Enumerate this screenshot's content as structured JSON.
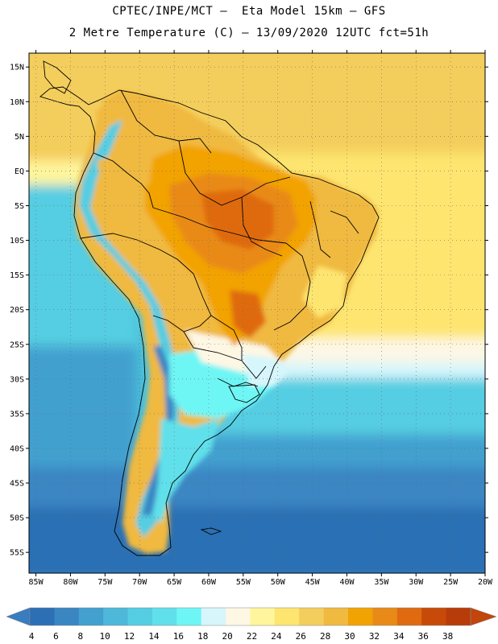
{
  "header": {
    "line1": "CPTEC/INPE/MCT –  Eta Model 15km – GFS",
    "line2": "2 Metre Temperature (C) – 13/09/2020 12UTC fct=51h"
  },
  "map": {
    "lon_range": [
      -86,
      -20
    ],
    "lat_range": [
      -58,
      17
    ],
    "lat_ticks": [
      "15N",
      "10N",
      "5N",
      "EQ",
      "5S",
      "10S",
      "15S",
      "20S",
      "25S",
      "30S",
      "35S",
      "40S",
      "45S",
      "50S",
      "55S"
    ],
    "lat_values": [
      15,
      10,
      5,
      0,
      -5,
      -10,
      -15,
      -20,
      -25,
      -30,
      -35,
      -40,
      -45,
      -50,
      -55
    ],
    "lon_ticks": [
      "85W",
      "80W",
      "75W",
      "70W",
      "65W",
      "60W",
      "55W",
      "50W",
      "45W",
      "40W",
      "35W",
      "30W",
      "25W",
      "20W"
    ],
    "lon_values": [
      -85,
      -80,
      -75,
      -70,
      -65,
      -60,
      -55,
      -50,
      -45,
      -40,
      -35,
      -30,
      -25,
      -20
    ]
  },
  "colorbar": {
    "labels": [
      "4",
      "6",
      "8",
      "10",
      "12",
      "14",
      "16",
      "18",
      "20",
      "22",
      "24",
      "26",
      "28",
      "30",
      "32",
      "34",
      "36",
      "38"
    ],
    "colors": [
      "#2c6fb4",
      "#3a86c3",
      "#43a0cf",
      "#4db8d9",
      "#55cde2",
      "#60e0ea",
      "#6ef6f5",
      "#d6f6fb",
      "#fdf7e4",
      "#fff59c",
      "#fde56f",
      "#f4ce5c",
      "#f0b93f",
      "#f2a304",
      "#e98a18",
      "#df6a10",
      "#c84a08",
      "#b83b0a"
    ],
    "low_color": "#3a7cc0",
    "high_color": "#c2450c"
  }
}
